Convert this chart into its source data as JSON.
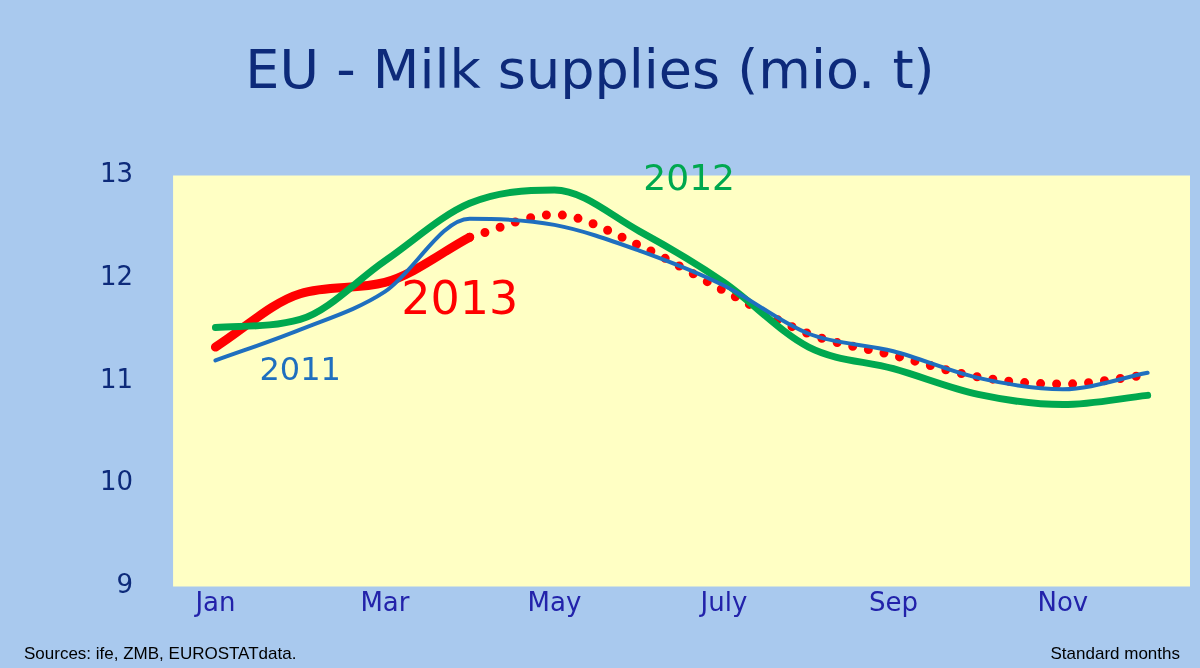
{
  "chart_data": {
    "type": "line",
    "title": "EU - Milk supplies (mio. t)",
    "categories": [
      "Jan",
      null,
      "Mar",
      null,
      "May",
      null,
      "July",
      null,
      "Sep",
      null,
      "Nov",
      null
    ],
    "ylim": [
      9,
      13
    ],
    "yticks": [
      9,
      10,
      11,
      12,
      13
    ],
    "grid": false,
    "legend": false,
    "marker": "none",
    "series": [
      {
        "name": "2011",
        "color": "#1f6fbf",
        "line_style": "solid",
        "values": [
          11.2,
          11.5,
          11.87,
          12.58,
          12.52,
          12.27,
          11.93,
          11.46,
          11.29,
          11.03,
          10.92,
          11.08
        ]
      },
      {
        "name": "2012",
        "color": "#00a84f",
        "line_style": "solid",
        "values": [
          11.52,
          11.6,
          12.17,
          12.73,
          12.86,
          12.46,
          11.96,
          11.33,
          11.12,
          10.87,
          10.77,
          10.86
        ]
      },
      {
        "name": "2013",
        "color": "#ff0000",
        "line_style": "solid",
        "values": [
          11.33,
          11.85,
          11.96,
          12.4,
          null,
          null,
          null,
          null,
          null,
          null,
          null,
          null
        ]
      },
      {
        "color": "#ff0000",
        "line_style": "dotted",
        "values": [
          null,
          null,
          null,
          12.4,
          12.62,
          12.32,
          11.88,
          11.46,
          11.25,
          11.04,
          10.97,
          11.06
        ]
      }
    ],
    "annotations": [
      "Sources: ife, ZMB, EUROSTATdata.",
      "Standard months"
    ]
  }
}
